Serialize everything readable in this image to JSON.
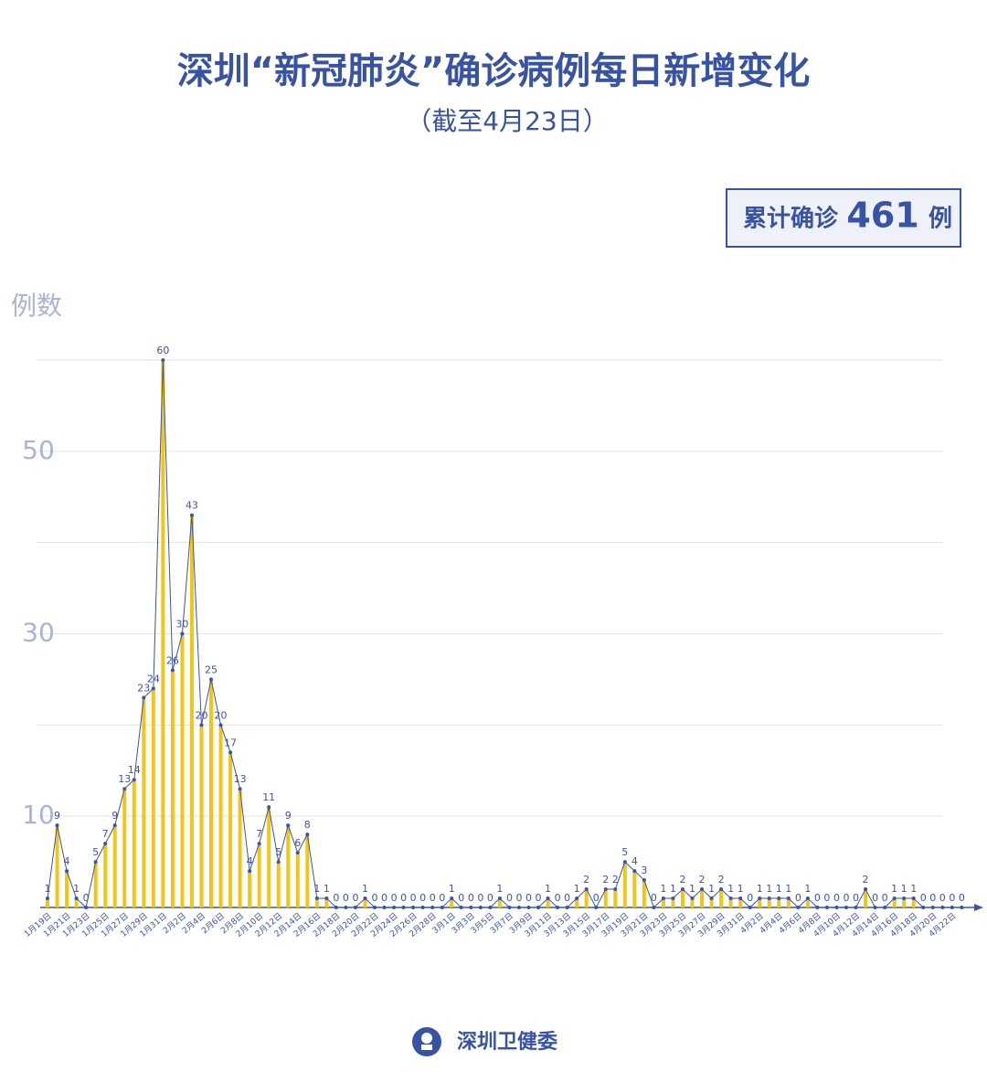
{
  "title": "深圳“新冠肺炎”确诊病例每日新增变化",
  "subtitle": "（截至4月23日）",
  "total_box": {
    "label": "累计确诊",
    "value": "461",
    "unit": "例"
  },
  "footer": "深圳卫健委",
  "chart_data": {
    "type": "bar_line",
    "y_label": "例数",
    "categories": [
      "1月19日",
      null,
      "1月21日",
      null,
      "1月23日",
      null,
      "1月25日",
      null,
      "1月27日",
      null,
      "1月29日",
      null,
      "1月31日",
      null,
      "2月2日",
      null,
      "2月4日",
      null,
      "2月6日",
      null,
      "2月8日",
      null,
      "2月10日",
      null,
      "2月12日",
      null,
      "2月14日",
      null,
      "2月16日",
      null,
      "2月18日",
      null,
      "2月20日",
      null,
      "2月22日",
      null,
      "2月24日",
      null,
      "2月26日",
      null,
      "2月28日",
      null,
      "3月1日",
      null,
      "3月3日",
      null,
      "3月5日",
      null,
      "3月7日",
      null,
      "3月9日",
      null,
      "3月11日",
      null,
      "3月13日",
      null,
      "3月15日",
      null,
      "3月17日",
      null,
      "3月19日",
      null,
      "3月21日",
      null,
      "3月23日",
      null,
      "3月25日",
      null,
      "3月27日",
      null,
      "3月29日",
      null,
      "3月31日",
      null,
      "4月2日",
      null,
      "4月4日",
      null,
      "4月6日",
      null,
      "4月8日",
      null,
      "4月10日",
      null,
      "4月12日",
      null,
      "4月14日",
      null,
      "4月16日",
      null,
      "4月18日",
      null,
      "4月20日",
      null,
      "4月22日",
      null
    ],
    "values": [
      1,
      9,
      4,
      1,
      0,
      5,
      7,
      9,
      13,
      14,
      23,
      24,
      60,
      26,
      30,
      43,
      20,
      25,
      20,
      17,
      13,
      4,
      7,
      11,
      5,
      9,
      6,
      8,
      1,
      1,
      0,
      0,
      0,
      1,
      0,
      0,
      0,
      0,
      0,
      0,
      0,
      0,
      1,
      0,
      0,
      0,
      0,
      1,
      0,
      0,
      0,
      0,
      1,
      0,
      0,
      1,
      2,
      0,
      2,
      2,
      5,
      4,
      3,
      0,
      1,
      1,
      2,
      1,
      2,
      1,
      2,
      1,
      1,
      0,
      1,
      1,
      1,
      1,
      0,
      1,
      0,
      0,
      0,
      0,
      0,
      2,
      0,
      0,
      1,
      1,
      1,
      0,
      0,
      0,
      0,
      0
    ],
    "bar_color": "#f2c618",
    "line_color": "#3d54a0",
    "ylim": [
      0,
      60
    ],
    "yticks": [
      {
        "value": 10,
        "label": "10"
      },
      {
        "value": 20,
        "label": null
      },
      {
        "value": 30,
        "label": "30"
      },
      {
        "value": 40,
        "label": null
      },
      {
        "value": 50,
        "label": "50"
      },
      {
        "value": 60,
        "label": null
      }
    ],
    "grid": true
  }
}
